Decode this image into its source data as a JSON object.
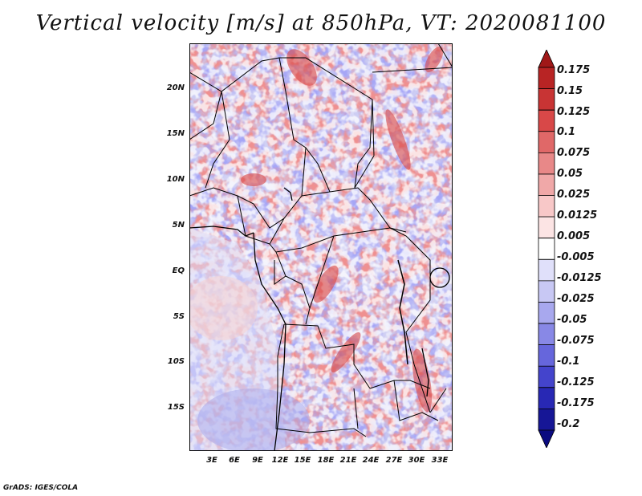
{
  "title": "Vertical velocity [m/s] at 850hPa, VT: 2020081100",
  "footer": "GrADS: IGES/COLA",
  "map": {
    "lat_labels": [
      "20N",
      "15N",
      "10N",
      "5N",
      "EQ",
      "5S",
      "10S",
      "15S"
    ],
    "lon_labels": [
      "3E",
      "6E",
      "9E",
      "12E",
      "15E",
      "18E",
      "21E",
      "24E",
      "27E",
      "30E",
      "33E"
    ]
  },
  "colorbar": {
    "labels": [
      "0.175",
      "0.15",
      "0.125",
      "0.1",
      "0.075",
      "0.05",
      "0.025",
      "0.0125",
      "0.005",
      "-0.005",
      "-0.0125",
      "-0.025",
      "-0.05",
      "-0.075",
      "-0.1",
      "-0.125",
      "-0.175",
      "-0.2"
    ],
    "colors": [
      "#a01818",
      "#b82424",
      "#c83434",
      "#d84848",
      "#e06868",
      "#e88888",
      "#f0a8a8",
      "#f8c8c8",
      "#fce4e4",
      "#ffffff",
      "#e0e0fa",
      "#c8c8f4",
      "#a8a8ee",
      "#8888e6",
      "#6666dc",
      "#4444cc",
      "#2828b4",
      "#161696",
      "#0a0a80"
    ],
    "units": "m/s"
  }
}
